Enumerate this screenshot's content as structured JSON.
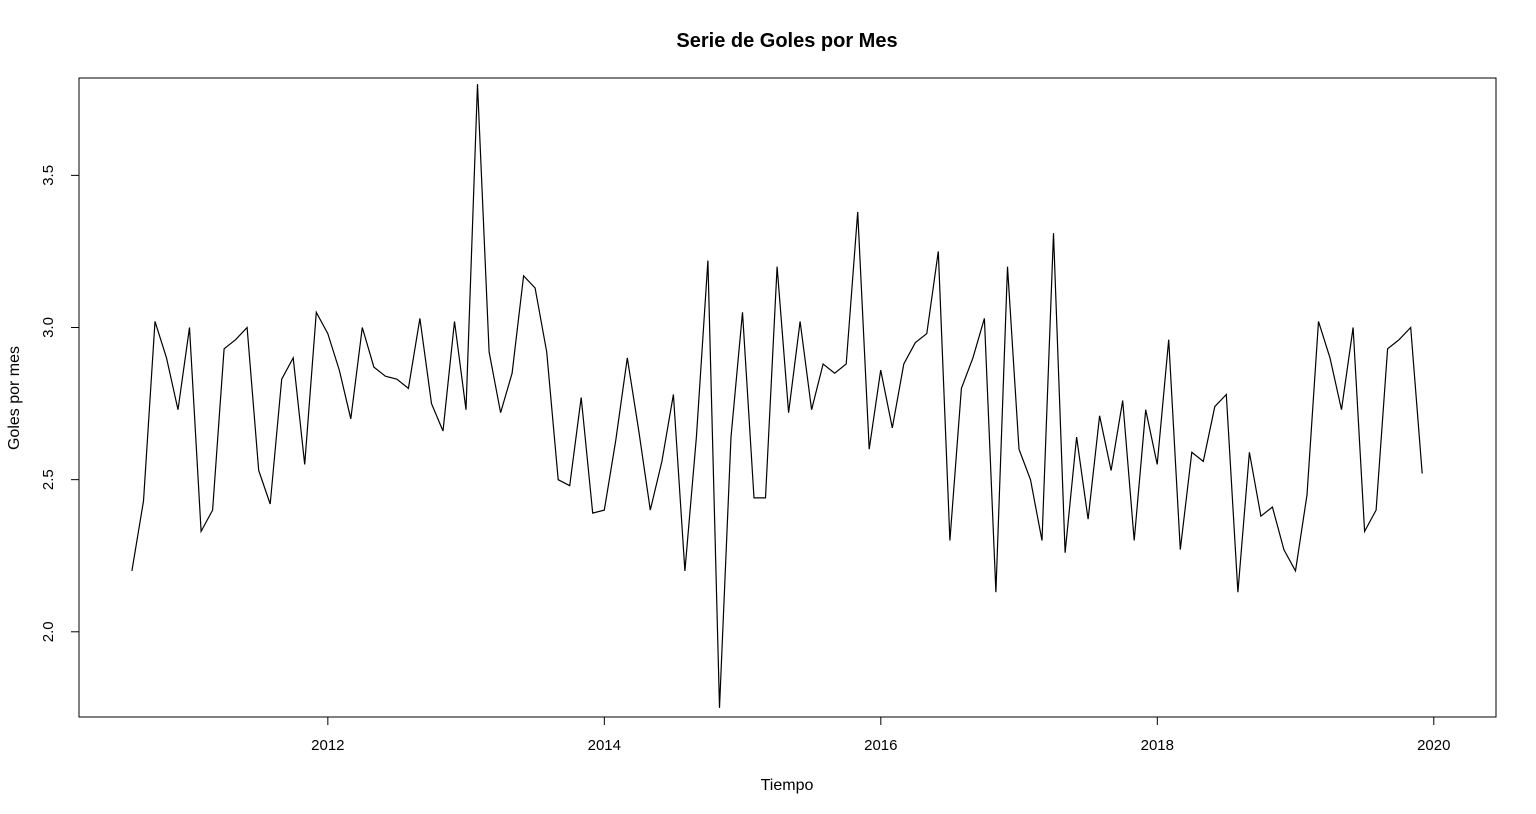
{
  "chart_data": {
    "type": "line",
    "title": "Serie de Goles por Mes",
    "xlabel": "Tiempo",
    "ylabel": "Goles por mes",
    "x_start": 2010.583,
    "x_step": 0.08333,
    "xlim": [
      2010.2,
      2020.45
    ],
    "ylim": [
      1.72,
      3.82
    ],
    "xticks": [
      2012,
      2014,
      2016,
      2018,
      2020
    ],
    "xtick_labels": [
      "2012",
      "2014",
      "2016",
      "2018",
      "2020"
    ],
    "yticks": [
      2.0,
      2.5,
      3.0,
      3.5
    ],
    "ytick_labels": [
      "2.0",
      "2.5",
      "3.0",
      "3.5"
    ],
    "grid": false,
    "legend": "none",
    "series": [
      {
        "values": [
          2.2,
          2.43,
          3.02,
          2.9,
          2.73,
          3.0,
          2.33,
          2.4,
          2.93,
          2.96,
          3.0,
          2.53,
          2.42,
          2.83,
          2.9,
          2.55,
          3.05,
          2.98,
          2.86,
          2.7,
          3.0,
          2.87,
          2.84,
          2.83,
          2.8,
          3.03,
          2.75,
          2.66,
          3.02,
          2.73,
          3.8,
          2.92,
          2.72,
          2.85,
          3.17,
          3.13,
          2.92,
          2.5,
          2.48,
          2.77,
          2.39,
          2.4,
          2.63,
          2.9,
          2.66,
          2.4,
          2.56,
          2.78,
          2.2,
          2.64,
          3.22,
          1.75,
          2.64,
          3.05,
          2.44,
          2.44,
          3.2,
          2.72,
          3.02,
          2.73,
          2.88,
          2.85,
          2.88,
          3.38,
          2.6,
          2.86,
          2.67,
          2.88,
          2.95,
          2.98,
          3.25,
          2.3,
          2.8,
          2.9,
          3.03,
          2.13,
          3.2,
          2.6,
          2.5,
          2.3,
          3.31,
          2.26,
          2.64,
          2.37,
          2.71,
          2.53,
          2.76,
          2.3,
          2.73,
          2.55,
          2.96,
          2.27,
          2.59,
          2.56,
          2.74,
          2.78,
          2.13,
          2.59,
          2.38,
          2.41,
          2.27,
          2.2,
          2.45,
          3.02,
          2.9,
          2.73,
          3.0,
          2.33,
          2.4,
          2.93,
          2.96,
          3.0,
          2.52
        ]
      }
    ]
  }
}
